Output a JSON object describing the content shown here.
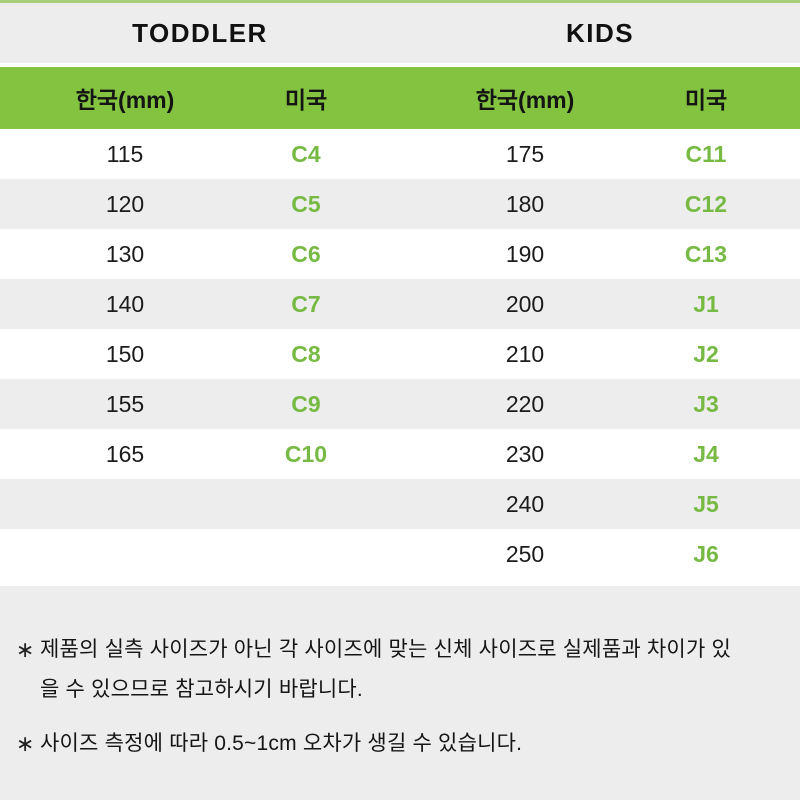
{
  "colors": {
    "green_header": "#83C33F",
    "green_value": "#76BA43",
    "top_line": "#A9CE77",
    "stripe": "#EDEDED"
  },
  "sections": [
    {
      "title": "TODDLER",
      "col_headers": [
        "한국(mm)",
        "미국"
      ],
      "rows": [
        [
          "115",
          "C4"
        ],
        [
          "120",
          "C5"
        ],
        [
          "130",
          "C6"
        ],
        [
          "140",
          "C7"
        ],
        [
          "150",
          "C8"
        ],
        [
          "155",
          "C9"
        ],
        [
          "165",
          "C10"
        ]
      ]
    },
    {
      "title": "KIDS",
      "col_headers": [
        "한국(mm)",
        "미국"
      ],
      "rows": [
        [
          "175",
          "C11"
        ],
        [
          "180",
          "C12"
        ],
        [
          "190",
          "C13"
        ],
        [
          "200",
          "J1"
        ],
        [
          "210",
          "J2"
        ],
        [
          "220",
          "J3"
        ],
        [
          "230",
          "J4"
        ],
        [
          "240",
          "J5"
        ],
        [
          "250",
          "J6"
        ]
      ]
    }
  ],
  "notes": {
    "bullet": "∗",
    "items": [
      "제품의 실측 사이즈가 아닌 각 사이즈에 맞는 신체 사이즈로 실제품과 차이가 있을 수 있으므로 참고하시기 바랍니다.",
      "사이즈 측정에 따라 0.5~1cm 오차가 생길 수 있습니다."
    ]
  }
}
